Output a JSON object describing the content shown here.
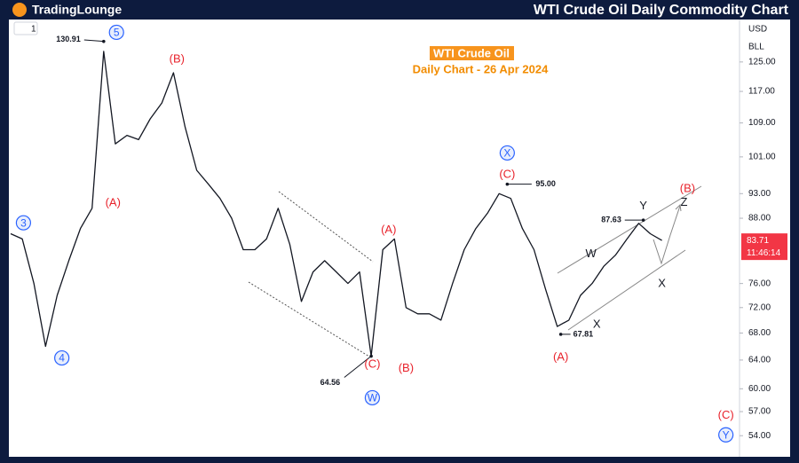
{
  "header": {
    "logo": "TradingLounge",
    "title": "WTI Crude Oil Daily Commodity Chart"
  },
  "toolbar": {
    "interval": "1",
    "currency": "USD",
    "unit": "BLL"
  },
  "chart_data": {
    "type": "line",
    "title": "WTI Crude Oil",
    "subtitle": "Daily Chart - 26 Apr 2024",
    "color": "#131722",
    "values": [
      85,
      84,
      76,
      66,
      74,
      80,
      86,
      90,
      128,
      104,
      106,
      105,
      110,
      114,
      122,
      108,
      98,
      95,
      92,
      88,
      82,
      82,
      84,
      90,
      83,
      73,
      78,
      80,
      78,
      76,
      78,
      64.56,
      82,
      84,
      72,
      71,
      71,
      70,
      76,
      82,
      86,
      89,
      93,
      92,
      86,
      82,
      75,
      69,
      70,
      74,
      76,
      79,
      81,
      84,
      87,
      85,
      83.71
    ],
    "ylim": [
      51.5,
      137.5
    ],
    "log_scale": true,
    "yticks": [
      {
        "value": 125,
        "label": "125.00"
      },
      {
        "value": 117,
        "label": "117.00"
      },
      {
        "value": 109,
        "label": "109.00"
      },
      {
        "value": 101,
        "label": "101.00"
      },
      {
        "value": 93,
        "label": "93.00"
      },
      {
        "value": 88,
        "label": "88.00"
      },
      {
        "value": 76,
        "label": "76.00"
      },
      {
        "value": 72,
        "label": "72.00"
      },
      {
        "value": 68,
        "label": "68.00"
      },
      {
        "value": 64,
        "label": "64.00"
      },
      {
        "value": 60,
        "label": "60.00"
      },
      {
        "value": 57,
        "label": "57.00"
      },
      {
        "value": 54,
        "label": "54.00"
      }
    ],
    "last_price": 83.71,
    "last_price_color": "#f23645",
    "countdown": "11:46:14",
    "callouts": [
      {
        "text": "130.91",
        "x": 8,
        "y": 130.91
      },
      {
        "text": "64.56",
        "x": 31,
        "y": 64.56
      },
      {
        "text": "95.00",
        "x": 42.7,
        "y": 95
      },
      {
        "text": "67.81",
        "x": 47.3,
        "y": 67.81
      },
      {
        "text": "87.63",
        "x": 54.4,
        "y": 87.63
      }
    ],
    "annotations": [
      {
        "text": "5",
        "x": 9.1,
        "y": 133.6,
        "style": "circle",
        "color": "#2962ff"
      },
      {
        "text": "(B)",
        "x": 14.3,
        "y": 126,
        "style": "plain",
        "color": "#e8222b"
      },
      {
        "text": "(A)",
        "x": 8.8,
        "y": 91.2,
        "style": "plain",
        "color": "#e8222b"
      },
      {
        "text": "3",
        "x": 1.1,
        "y": 87.1,
        "style": "circle",
        "color": "#2962ff"
      },
      {
        "text": "4",
        "x": 4.4,
        "y": 64.3,
        "style": "circle",
        "color": "#2962ff"
      },
      {
        "text": "(C)",
        "x": 31.1,
        "y": 63.5,
        "style": "plain",
        "color": "#e8222b"
      },
      {
        "text": "W",
        "x": 31.1,
        "y": 58.8,
        "style": "circle",
        "color": "#2962ff"
      },
      {
        "text": "(A)",
        "x": 32.5,
        "y": 85.8,
        "style": "plain",
        "color": "#e8222b"
      },
      {
        "text": "(B)",
        "x": 34,
        "y": 62.9,
        "style": "plain",
        "color": "#e8222b"
      },
      {
        "text": "X",
        "x": 42.7,
        "y": 101.9,
        "style": "circle",
        "color": "#2962ff"
      },
      {
        "text": "(C)",
        "x": 42.7,
        "y": 97.2,
        "style": "plain",
        "color": "#e8222b"
      },
      {
        "text": "(A)",
        "x": 47.3,
        "y": 64.5,
        "style": "plain",
        "color": "#e8222b"
      },
      {
        "text": "W",
        "x": 49.9,
        "y": 81.3,
        "style": "plain",
        "color": "#131722"
      },
      {
        "text": "X",
        "x": 50.4,
        "y": 69.4,
        "style": "plain",
        "color": "#131722"
      },
      {
        "text": "Y",
        "x": 54.4,
        "y": 90.6,
        "style": "plain",
        "color": "#131722"
      },
      {
        "text": "X",
        "x": 56,
        "y": 76.1,
        "style": "plain",
        "color": "#131722"
      },
      {
        "text": "Z",
        "x": 57.9,
        "y": 91.3,
        "style": "plain",
        "color": "#131722"
      },
      {
        "text": "(B)",
        "x": 58.2,
        "y": 94.2,
        "style": "plain",
        "color": "#e8222b"
      },
      {
        "text": "(C)",
        "x": 61.5,
        "y": 56.6,
        "style": "plain",
        "color": "#e8222b"
      },
      {
        "text": "Y",
        "x": 61.5,
        "y": 54.1,
        "style": "circle",
        "color": "#2962ff"
      }
    ]
  }
}
